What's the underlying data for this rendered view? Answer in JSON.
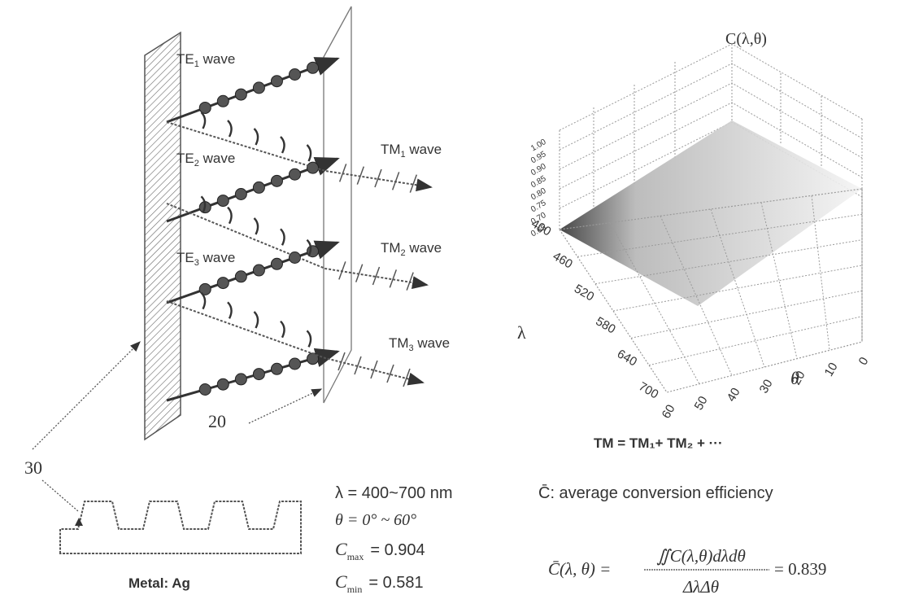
{
  "left_diagram": {
    "te_labels": [
      "TE",
      "TE",
      "TE"
    ],
    "te_subs": [
      "1",
      "2",
      "3"
    ],
    "tm_labels": [
      "TM",
      "TM",
      "TM"
    ],
    "tm_subs": [
      "1",
      "2",
      "3"
    ],
    "wave_word": "wave",
    "label_20": "20",
    "label_30": "30",
    "metal_caption": "Metal: Ag"
  },
  "surface_plot": {
    "z_title": "C(λ,θ)",
    "z_ticks": [
      "1.00",
      "0.95",
      "0.90",
      "0.85",
      "0.80",
      "0.75",
      "0.70",
      "0.65"
    ],
    "lambda_label": "λ",
    "lambda_ticks": [
      "400",
      "460",
      "520",
      "580",
      "640",
      "700"
    ],
    "theta_label": "θ",
    "theta_ticks": [
      "0",
      "10",
      "20",
      "30",
      "40",
      "50",
      "60"
    ],
    "tm_sum": "TM = TM₁+ TM₂ + ···"
  },
  "params": {
    "lambda_range": "λ = 400~700 nm",
    "theta_range": "θ = 0° ~ 60°",
    "cmax": "C",
    "cmax_sub": "max",
    "cmax_val": "= 0.904",
    "cmin": "C",
    "cmin_sub": "min",
    "cmin_val": "= 0.581"
  },
  "efficiency": {
    "definition": "C̄: average conversion efficiency",
    "lhs": "C̄(λ, θ) =",
    "numerator": "∬C(λ,θ)dλdθ",
    "denominator": "ΔλΔθ",
    "result": "= 0.839"
  },
  "colors": {
    "ink": "#333333",
    "grid": "#9a9a9a",
    "ball": "#555555"
  }
}
